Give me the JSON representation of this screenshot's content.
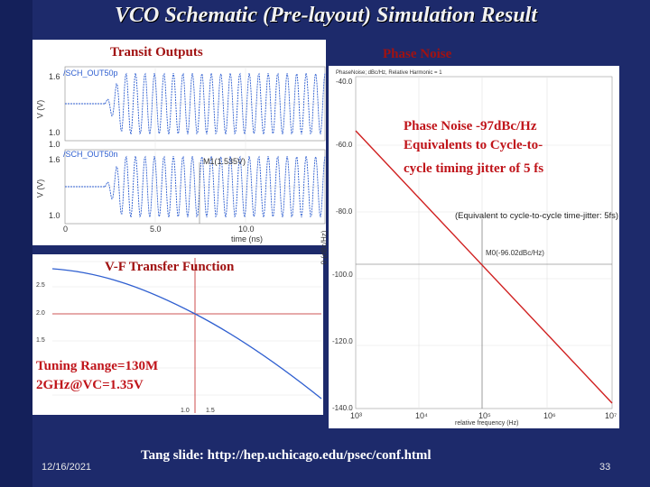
{
  "slide": {
    "title": "VCO Schematic (Pre-layout) Simulation Result",
    "date": "12/16/2021",
    "source": "Tang slide: http://hep.uchicago.edu/psec/conf.html",
    "page_number": "33"
  },
  "transit_outputs": {
    "label": "Transit Outputs",
    "top_trace_name": "/SCH_OUT50p",
    "bottom_trace_name": "/SCH_OUT50n",
    "y_axis": "V (V)",
    "y_ticks_top": [
      "1.6",
      "1.0"
    ],
    "y_ticks_bottom": [
      "1.0",
      "1.6",
      "1.0"
    ],
    "marker": "M1(1.535V)",
    "x_ticks": [
      "0",
      "5.0",
      "10.0"
    ],
    "x_axis": "time (ns)"
  },
  "phase_noise": {
    "label": "Phase Noise",
    "legend": "PhaseNoise; dBc/Hz, Relative Harmonic = 1",
    "y_ticks": [
      "-40.0",
      "-60.0",
      "-80.0",
      "-100.0",
      "-120.0",
      "-140.0"
    ],
    "y_axis": "0 (dBc/Hz)",
    "x_ticks": [
      "10³",
      "10⁴",
      "10⁵",
      "10⁶",
      "10⁷"
    ],
    "x_axis": "relative frequency (Hz)",
    "note_lines": [
      "Phase Noise -97dBc/Hz",
      "Equivalents to Cycle-to-",
      "cycle timing jitter of 5 fs"
    ],
    "annotation": "(Equivalent to cycle-to-cycle time-jitter: 5fs)",
    "marker": "M0(-96.02dBc/Hz)"
  },
  "vf_transfer": {
    "label": "V-F Transfer Function",
    "y_ticks": [
      "2.5",
      "2.0",
      "1.5"
    ],
    "x_ticks": [
      "1.0",
      "1.5"
    ],
    "note_lines": [
      "Tuning Range=130M",
      "2GHz@VC=1.35V"
    ]
  },
  "colors": {
    "background": "#1d2a6b",
    "trace_blue": "#2f5fd0",
    "curve_red": "#d02020",
    "annotation_red": "#a11212"
  }
}
